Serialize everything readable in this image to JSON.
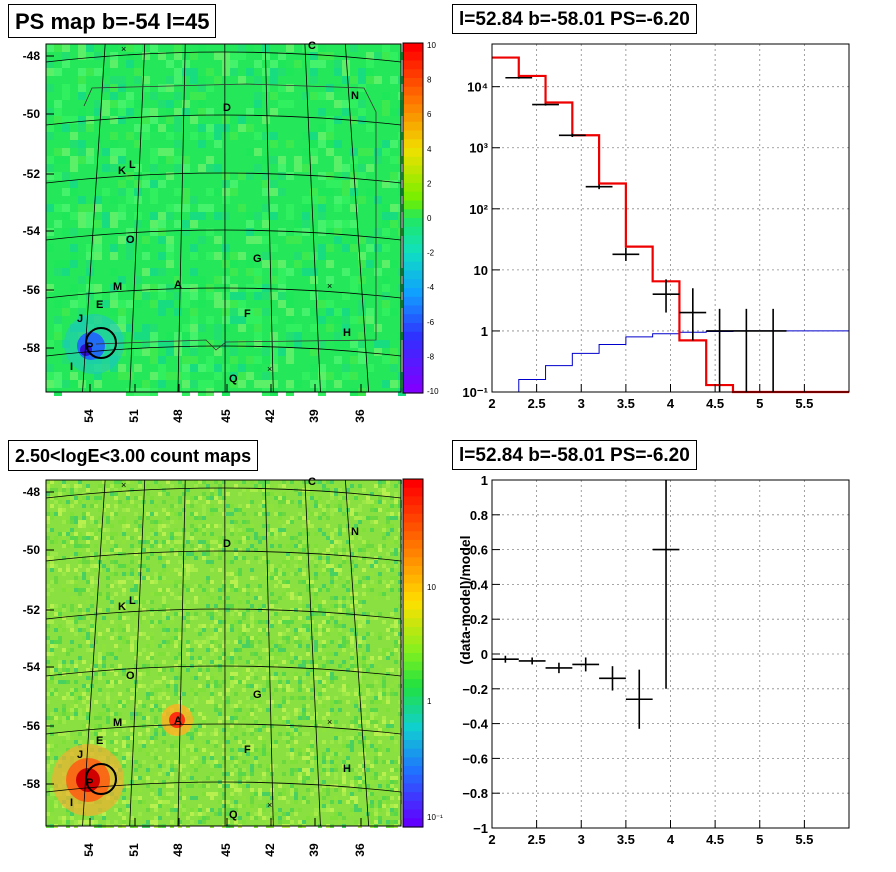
{
  "panels": {
    "ps_map_title": "PS map b=-54 l=45",
    "spectrum_title": "l=52.84 b=-58.01 PS=-6.20",
    "count_map_title": "2.50<logE<3.00 count maps",
    "residual_title": "l=52.84 b=-58.01 PS=-6.20"
  },
  "maps": {
    "y_ticks": [
      "-48",
      "-50",
      "-52",
      "-54",
      "-56",
      "-58"
    ],
    "x_ticks": [
      "54",
      "51",
      "48",
      "45",
      "42",
      "39",
      "36"
    ],
    "letters": [
      "C",
      "N",
      "D",
      "K",
      "L",
      "O",
      "G",
      "M",
      "A",
      "E",
      "F",
      "J",
      "H",
      "P",
      "I",
      "Q"
    ],
    "ps_colorbar_ticks": [
      "10",
      "8",
      "6",
      "4",
      "2",
      "0",
      "-2",
      "-4",
      "-6",
      "-8",
      "-10"
    ],
    "count_colorbar_ticks": [
      "10",
      "1",
      "10⁻¹"
    ]
  },
  "chart_data": [
    {
      "type": "heatmap",
      "title": "PS map b=-54 l=45",
      "x_ticks": [
        54,
        51,
        48,
        45,
        42,
        39,
        36
      ],
      "y_ticks": [
        -48,
        -50,
        -52,
        -54,
        -56,
        -58
      ],
      "zlim": [
        -10,
        10
      ],
      "colors": {
        "background": "#22ee55",
        "hotspot": "#2060ff"
      }
    },
    {
      "type": "line",
      "title": "l=52.84 b=-58.01 PS=-6.20",
      "yscale": "log",
      "xlim": [
        2,
        6
      ],
      "ylim": [
        0.1,
        50000
      ],
      "x_ticks": [
        "2",
        "2.5",
        "3",
        "3.5",
        "4",
        "4.5",
        "5",
        "5.5"
      ],
      "y_ticks": [
        "10⁻¹",
        "1",
        "10",
        "10²",
        "10³",
        "10⁴"
      ],
      "grid": true,
      "model_edges": [
        2.0,
        2.3,
        2.6,
        2.9,
        3.2,
        3.5,
        3.8,
        4.1,
        4.4,
        4.7,
        6.0
      ],
      "model_values": [
        30000,
        15000,
        5500,
        1600,
        260,
        24,
        6.5,
        0.7,
        0.13,
        0.1
      ],
      "data_points": [
        {
          "x": 2.3,
          "y": 14000,
          "ylo": 13500,
          "yhi": 14500
        },
        {
          "x": 2.6,
          "y": 5100,
          "ylo": 4900,
          "yhi": 5300
        },
        {
          "x": 2.9,
          "y": 1600,
          "ylo": 1500,
          "yhi": 1700
        },
        {
          "x": 3.2,
          "y": 230,
          "ylo": 210,
          "yhi": 250
        },
        {
          "x": 3.5,
          "y": 18,
          "ylo": 14,
          "yhi": 23
        },
        {
          "x": 3.95,
          "y": 4,
          "ylo": 2,
          "yhi": 7
        },
        {
          "x": 4.25,
          "y": 2,
          "ylo": 0.7,
          "yhi": 5
        },
        {
          "x": 4.55,
          "y": 1,
          "ylo": 0.1,
          "yhi": 2.3
        },
        {
          "x": 4.85,
          "y": 1,
          "ylo": 0.1,
          "yhi": 2.3
        },
        {
          "x": 5.15,
          "y": 1,
          "ylo": 0.1,
          "yhi": 2.3
        }
      ],
      "exposure_edges": [
        2.0,
        2.3,
        2.6,
        2.9,
        3.2,
        3.5,
        3.8,
        4.1,
        4.4,
        4.7,
        5.0,
        6.0
      ],
      "exposure_values": [
        0.1,
        0.16,
        0.27,
        0.43,
        0.6,
        0.8,
        0.9,
        0.95,
        0.98,
        1.0,
        1.0
      ],
      "colors": {
        "model": "#ee0000",
        "data": "#000000",
        "exposure": "#0000cc"
      }
    },
    {
      "type": "heatmap",
      "title": "2.50<logE<3.00 count maps",
      "x_ticks": [
        54,
        51,
        48,
        45,
        42,
        39,
        36
      ],
      "y_ticks": [
        -48,
        -50,
        -52,
        -54,
        -56,
        -58
      ],
      "scale": "log",
      "colors": {
        "background": "#88e040",
        "hotspot": "#e01010"
      }
    },
    {
      "type": "scatter",
      "title": "l=52.84 b=-58.01 PS=-6.20",
      "ylabel": "(data-model)/model",
      "xlim": [
        2,
        6
      ],
      "ylim": [
        -1,
        1
      ],
      "x_ticks": [
        "2",
        "2.5",
        "3",
        "3.5",
        "4",
        "4.5",
        "5",
        "5.5"
      ],
      "y_ticks": [
        "1",
        "0.8",
        "0.6",
        "0.4",
        "0.2",
        "0",
        "−0.2",
        "−0.4",
        "−0.6",
        "−0.8",
        "−1"
      ],
      "grid": true,
      "points": [
        {
          "x": 2.15,
          "y": -0.03,
          "xerr": 0.15,
          "yerr": 0.02
        },
        {
          "x": 2.45,
          "y": -0.04,
          "xerr": 0.15,
          "yerr": 0.02
        },
        {
          "x": 2.75,
          "y": -0.08,
          "xerr": 0.15,
          "yerr": 0.03
        },
        {
          "x": 3.05,
          "y": -0.06,
          "xerr": 0.15,
          "yerr": 0.04
        },
        {
          "x": 3.35,
          "y": -0.14,
          "xerr": 0.15,
          "yerr": 0.07
        },
        {
          "x": 3.65,
          "y": -0.26,
          "xerr": 0.15,
          "yerr": 0.17
        },
        {
          "x": 3.95,
          "y": 0.6,
          "xerr": 0.15,
          "yerr": 0.8
        }
      ]
    }
  ]
}
